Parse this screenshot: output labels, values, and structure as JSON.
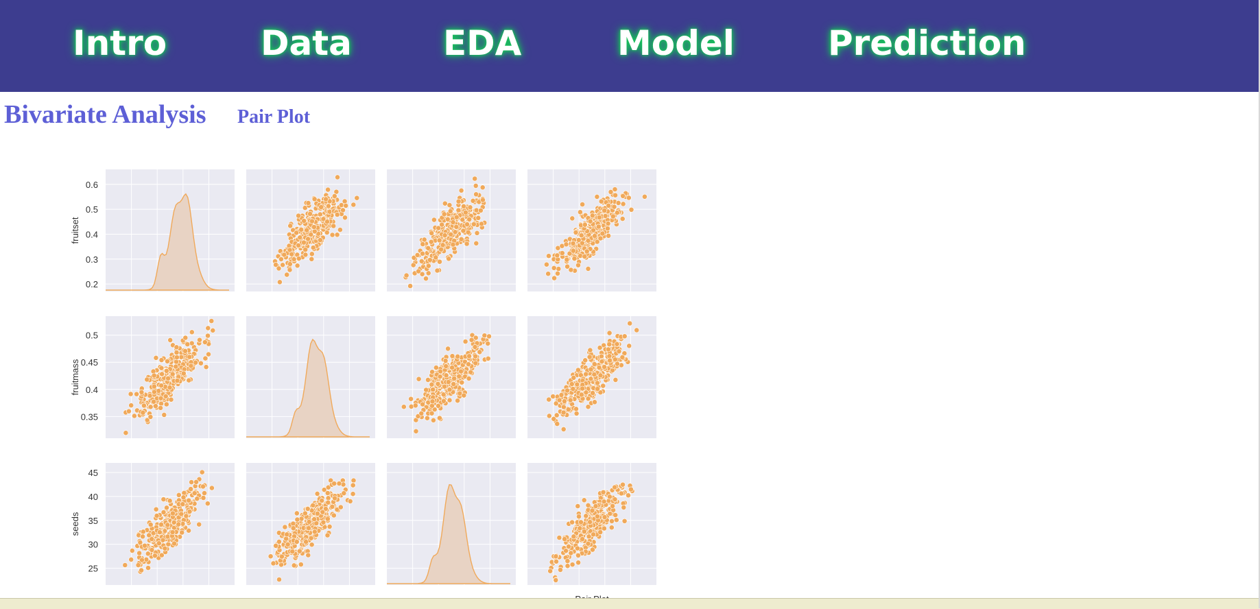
{
  "nav": {
    "items": [
      {
        "label": "Intro"
      },
      {
        "label": "Data"
      },
      {
        "label": "EDA"
      },
      {
        "label": "Model"
      },
      {
        "label": "Prediction"
      }
    ]
  },
  "section": {
    "title": "Bivariate Analysis",
    "subtitle": "Pair Plot"
  },
  "colors": {
    "navbar": "#3d3d8f",
    "nav_glow": "#18c45a",
    "heading": "#5d5fd6",
    "panel_bg": "#eaeaf2",
    "marker": "#f0a95a"
  },
  "chart_data": {
    "type": "scatter",
    "caption": "Pair Plot",
    "variables": [
      "fruitset",
      "fruitmass",
      "seeds"
    ],
    "row_labels": [
      "fruitset",
      "fruitmass",
      "seeds"
    ],
    "yticks": [
      [
        0.2,
        0.3,
        0.4,
        0.5,
        0.6
      ],
      [
        0.35,
        0.4,
        0.45,
        0.5
      ],
      [
        25,
        30,
        35,
        40,
        45
      ]
    ],
    "ylims": [
      [
        0.17,
        0.66
      ],
      [
        0.31,
        0.535
      ],
      [
        21.5,
        47
      ]
    ],
    "diagonal": "kde",
    "columns": 4,
    "grid": true
  }
}
